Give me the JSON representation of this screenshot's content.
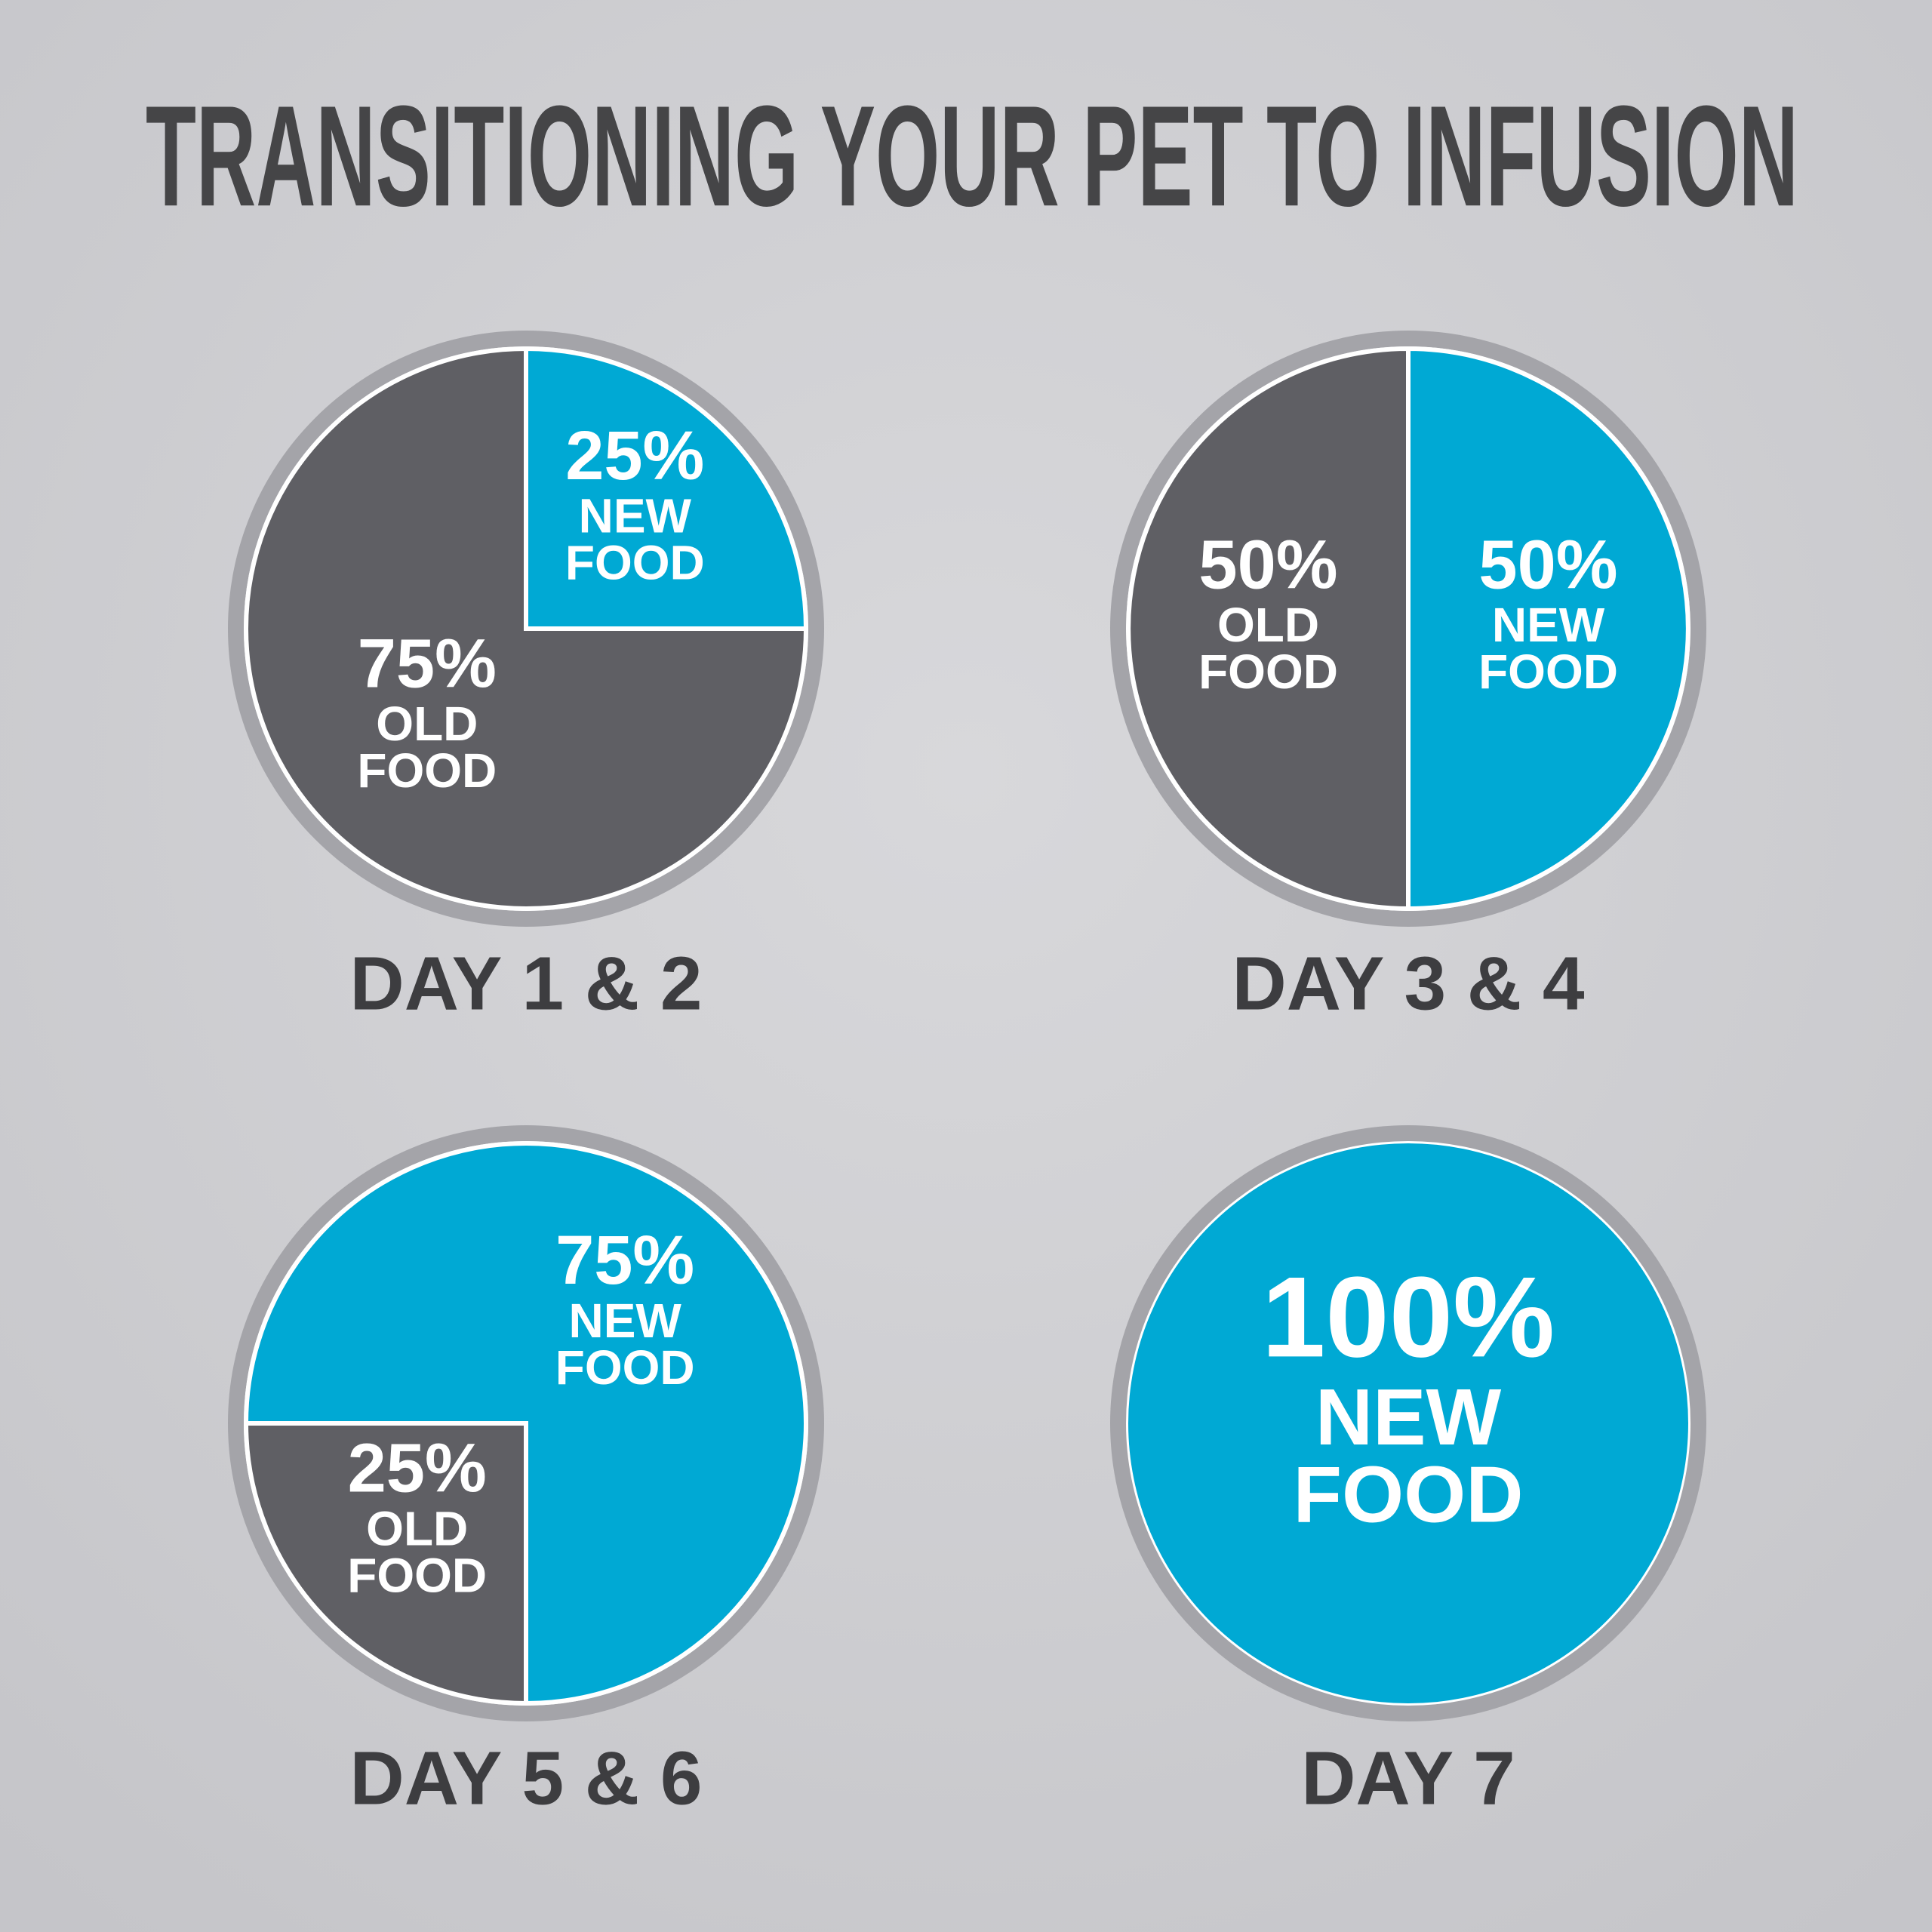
{
  "title": "TRANSITIONING YOUR PET TO INFUSION",
  "chart_data": [
    {
      "type": "pie",
      "title": "DAY 1 & 2",
      "startangle": 0,
      "categories": [
        "NEW FOOD",
        "OLD FOOD"
      ],
      "values": [
        25,
        75
      ],
      "value_labels": [
        "25%",
        "75%"
      ],
      "colors": [
        "#00a9d4",
        "#5f5f64"
      ]
    },
    {
      "type": "pie",
      "title": "DAY 3 & 4",
      "startangle": 0,
      "categories": [
        "NEW FOOD",
        "OLD FOOD"
      ],
      "values": [
        50,
        50
      ],
      "value_labels": [
        "50%",
        "50%"
      ],
      "colors": [
        "#00a9d4",
        "#5f5f64"
      ]
    },
    {
      "type": "pie",
      "title": "DAY 5 & 6",
      "startangle": 180,
      "categories": [
        "OLD FOOD",
        "NEW FOOD"
      ],
      "values": [
        25,
        75
      ],
      "value_labels": [
        "25%",
        "75%"
      ],
      "colors": [
        "#5f5f64",
        "#00a9d4"
      ]
    },
    {
      "type": "pie",
      "title": "DAY 7",
      "startangle": 0,
      "categories": [
        "NEW FOOD"
      ],
      "values": [
        100
      ],
      "value_labels": [
        "100%"
      ],
      "colors": [
        "#00a9d4"
      ]
    }
  ]
}
